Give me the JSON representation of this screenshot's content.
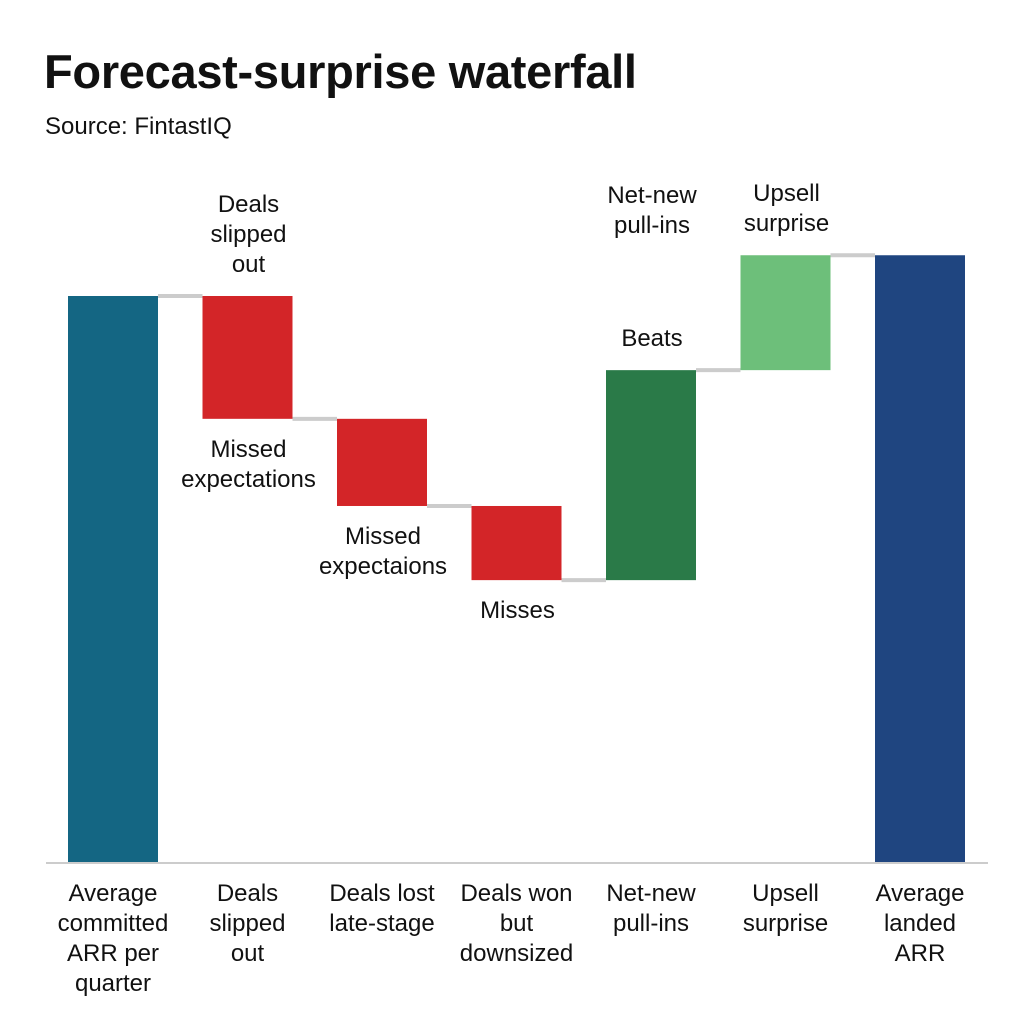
{
  "chart_data": {
    "type": "waterfall",
    "title": "Forecast-surprise waterfall",
    "subtitle": "Source: FintastIQ",
    "xlabel": "",
    "ylabel": "",
    "grid": false,
    "y_axis_shown": false,
    "ylim": [
      0,
      115
    ],
    "categories": [
      [
        "Average",
        "committed",
        "ARR per",
        "quarter"
      ],
      [
        "Deals",
        "slipped",
        "out"
      ],
      [
        "Deals lost",
        "late-stage"
      ],
      [
        "Deals won",
        "but",
        "downsized"
      ],
      [
        "Net-new",
        "pull-ins"
      ],
      [
        "Upsell",
        "surprise"
      ],
      [
        "Average",
        "landed",
        "ARR"
      ]
    ],
    "steps": [
      {
        "kind": "total",
        "value": 100,
        "color": "#146683"
      },
      {
        "kind": "delta",
        "value": -21.7,
        "color": "#d32528"
      },
      {
        "kind": "delta",
        "value": -15.4,
        "color": "#d32528"
      },
      {
        "kind": "delta",
        "value": -13.1,
        "color": "#d32528"
      },
      {
        "kind": "delta",
        "value": 37.1,
        "color": "#2a7a48"
      },
      {
        "kind": "delta",
        "value": 20.3,
        "color": "#6dbf7a"
      },
      {
        "kind": "total",
        "value": 107.2,
        "color": "#1f4580"
      }
    ],
    "connector_color": "#cccccc",
    "axis_color": "#bbbbbb",
    "annotations": [
      {
        "bar": 1,
        "position": "above",
        "lines": [
          "Deals",
          "slipped",
          "out"
        ]
      },
      {
        "bar": 1,
        "position": "below",
        "lines": [
          "Missed",
          "expectations"
        ]
      },
      {
        "bar": 2,
        "position": "below",
        "lines": [
          "Missed",
          "expectaions"
        ]
      },
      {
        "bar": 3,
        "position": "below",
        "lines": [
          "Misses"
        ]
      },
      {
        "bar": 4,
        "position": "above",
        "lines": [
          "Beats"
        ]
      },
      {
        "bar": 4,
        "position": "above",
        "lines": [
          "Net-new",
          "pull-ins"
        ]
      },
      {
        "bar": 5,
        "position": "above",
        "lines": [
          "Upsell",
          "surprise"
        ]
      }
    ]
  }
}
